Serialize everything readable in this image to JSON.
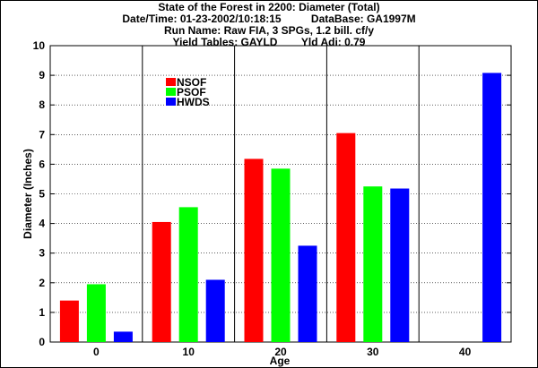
{
  "header": {
    "line1": "State of the Forest in 2200: Diameter (Total)",
    "line2": "Date/Time: 01-23-2002/10:18:15          DataBase: GA1997M",
    "line3": "Run Name: Raw FIA, 3 SPGs, 1.2 bill. cf/y",
    "line4": "Yield Tables: GAYLD        Yld Adj: 0.79"
  },
  "chart_data": {
    "type": "bar",
    "title": "State of the Forest in 2200: Diameter (Total)",
    "xlabel": "Age",
    "ylabel": "Diameter (Inches)",
    "categories": [
      "0",
      "10",
      "20",
      "30",
      "40"
    ],
    "ylim": [
      0,
      10
    ],
    "yticks": [
      0,
      1,
      2,
      3,
      4,
      5,
      6,
      7,
      8,
      9,
      10
    ],
    "grid": true,
    "legend_position": "top-left",
    "series": [
      {
        "name": "NSOF",
        "color": "#ff0000",
        "values": [
          1.4,
          4.05,
          6.18,
          7.05,
          null
        ]
      },
      {
        "name": "PSOF",
        "color": "#00ff00",
        "values": [
          1.95,
          4.55,
          5.85,
          5.25,
          null
        ]
      },
      {
        "name": "HWDS",
        "color": "#0000ff",
        "values": [
          0.35,
          2.1,
          3.25,
          5.18,
          9.08
        ]
      }
    ]
  }
}
